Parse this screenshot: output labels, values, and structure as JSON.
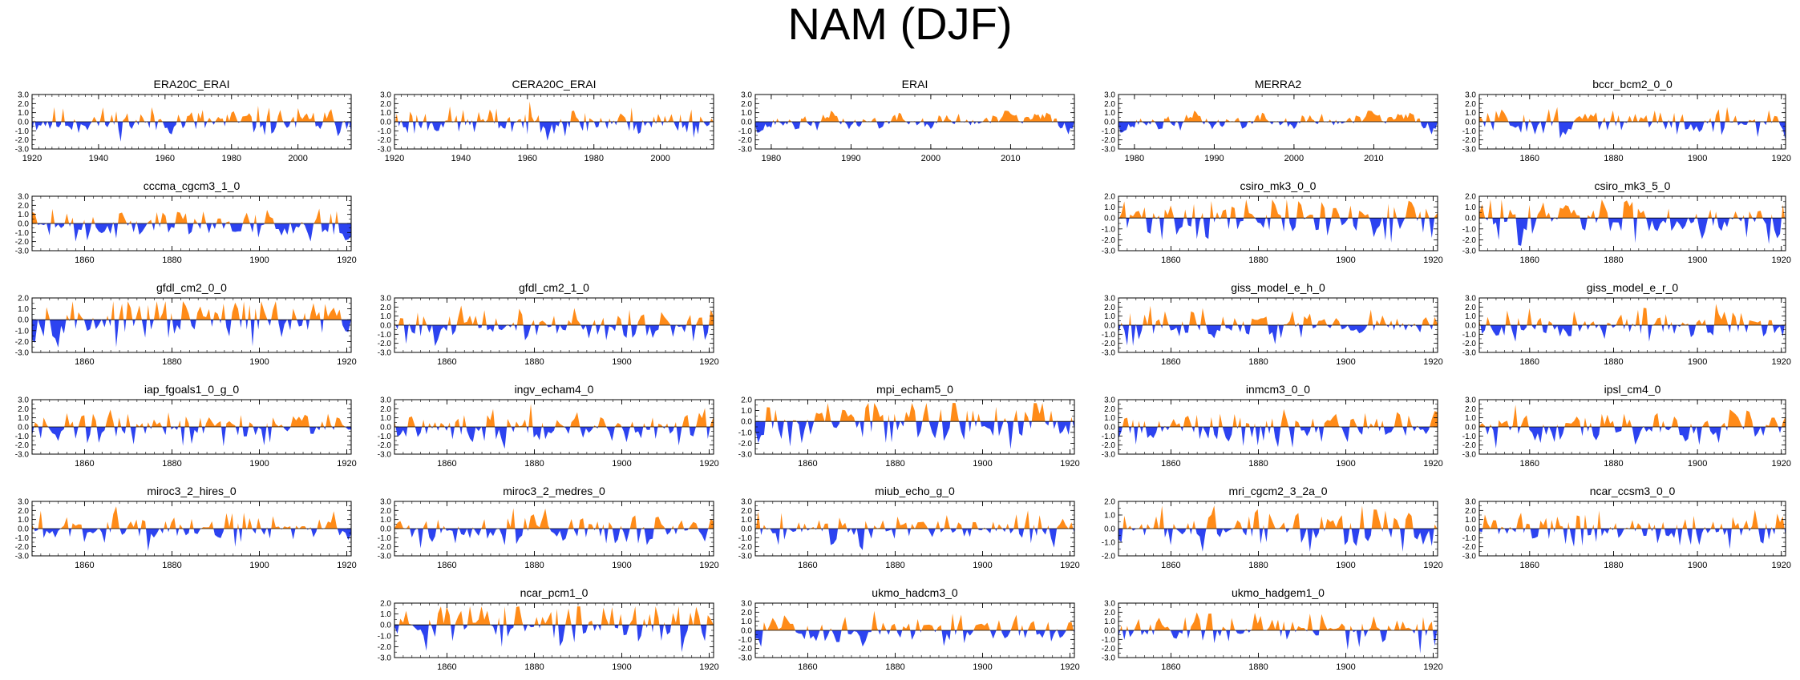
{
  "title": "NAM (DJF)",
  "colors": {
    "positive": "#ff8b18",
    "negative": "#2c43f0",
    "axis": "#000000"
  },
  "chart_data": [
    {
      "type": "area",
      "title": "ERA20C_ERAI",
      "xlim": [
        1920,
        2016
      ],
      "xticks": [
        1920,
        1940,
        1960,
        1980,
        2000
      ],
      "ylim": [
        -3,
        3
      ],
      "yticks": [
        3,
        2,
        1,
        0,
        -1,
        -2,
        -3
      ],
      "ytick_labels": [
        "3.0",
        "2.0",
        "1.0",
        "0.0",
        "-1.0",
        "-2.0",
        "-3.0"
      ],
      "seed": 11,
      "amp": 0.8
    },
    {
      "type": "area",
      "title": "CERA20C_ERAI",
      "xlim": [
        1920,
        2016
      ],
      "xticks": [
        1920,
        1940,
        1960,
        1980,
        2000
      ],
      "ylim": [
        -3,
        3
      ],
      "yticks": [
        3,
        2,
        1,
        0,
        -1,
        -2,
        -3
      ],
      "ytick_labels": [
        "3.0",
        "2.0",
        "1.0",
        "0.0",
        "-1.0",
        "-2.0",
        "-3.0"
      ],
      "seed": 23,
      "amp": 0.8
    },
    {
      "type": "area",
      "title": "ERAI",
      "xlim": [
        1978,
        2018
      ],
      "xticks": [
        1980,
        1990,
        2000,
        2010
      ],
      "ylim": [
        -3,
        3
      ],
      "yticks": [
        3,
        2,
        1,
        0,
        -1,
        -2,
        -3
      ],
      "ytick_labels": [
        "3.0",
        "2.0",
        "1.0",
        "0.0",
        "-1.0",
        "-2.0",
        "-3.0"
      ],
      "seed": 37,
      "amp": 0.9,
      "smooth": true
    },
    {
      "type": "area",
      "title": "MERRA2",
      "xlim": [
        1978,
        2018
      ],
      "xticks": [
        1980,
        1990,
        2000,
        2010
      ],
      "ylim": [
        -3,
        3
      ],
      "yticks": [
        3,
        2,
        1,
        0,
        -1,
        -2,
        -3
      ],
      "ytick_labels": [
        "3.0",
        "2.0",
        "1.0",
        "0.0",
        "-1.0",
        "-2.0",
        "-3.0"
      ],
      "seed": 37,
      "amp": 0.9,
      "smooth": true
    },
    {
      "type": "area",
      "title": "bccr_bcm2_0_0",
      "xlim": [
        1848,
        1921
      ],
      "xticks": [
        1860,
        1880,
        1900,
        1920
      ],
      "ylim": [
        -3,
        3
      ],
      "yticks": [
        3,
        2,
        1,
        0,
        -1,
        -2,
        -3
      ],
      "ytick_labels": [
        "3.0",
        "2.0",
        "1.0",
        "0.0",
        "-1.0",
        "-2.0",
        "-3.0"
      ],
      "seed": 51,
      "amp": 0.8
    },
    {
      "type": "area",
      "title": "cccma_cgcm3_1_0",
      "xlim": [
        1848,
        1921
      ],
      "xticks": [
        1860,
        1880,
        1900,
        1920
      ],
      "ylim": [
        -3,
        3
      ],
      "yticks": [
        3,
        2,
        1,
        0,
        -1,
        -2,
        -3
      ],
      "ytick_labels": [
        "3.0",
        "2.0",
        "1.0",
        "0.0",
        "-1.0",
        "-2.0",
        "-3.0"
      ],
      "seed": 63,
      "amp": 0.9
    },
    {
      "type": "area",
      "title": "csiro_mk3_0_0",
      "xlim": [
        1848,
        1921
      ],
      "xticks": [
        1860,
        1880,
        1900,
        1920
      ],
      "ylim": [
        -3,
        2
      ],
      "yticks": [
        2,
        1,
        0,
        -1,
        -2,
        -3
      ],
      "ytick_labels": [
        "2.0",
        "1.0",
        "0.0",
        "-1.0",
        "-2.0",
        "-3.0"
      ],
      "seed": 71,
      "amp": 1.0
    },
    {
      "type": "area",
      "title": "csiro_mk3_5_0",
      "xlim": [
        1848,
        1921
      ],
      "xticks": [
        1860,
        1880,
        1900,
        1920
      ],
      "ylim": [
        -3,
        2
      ],
      "yticks": [
        2,
        1,
        0,
        -1,
        -2,
        -3
      ],
      "ytick_labels": [
        "2.0",
        "1.0",
        "0.0",
        "-1.0",
        "-2.0",
        "-3.0"
      ],
      "seed": 83,
      "amp": 1.0
    },
    {
      "type": "area",
      "title": "gfdl_cm2_0_0",
      "xlim": [
        1848,
        1921
      ],
      "xticks": [
        1860,
        1880,
        1900,
        1920
      ],
      "ylim": [
        -3,
        2
      ],
      "yticks": [
        2,
        1,
        0,
        -1,
        -2,
        -3
      ],
      "ytick_labels": [
        "2.0",
        "1.0",
        "0.0",
        "-1.0",
        "-2.0",
        "-3.0"
      ],
      "seed": 97,
      "amp": 1.0
    },
    {
      "type": "area",
      "title": "gfdl_cm2_1_0",
      "xlim": [
        1848,
        1921
      ],
      "xticks": [
        1860,
        1880,
        1900,
        1920
      ],
      "ylim": [
        -3,
        3
      ],
      "yticks": [
        3,
        2,
        1,
        0,
        -1,
        -2,
        -3
      ],
      "ytick_labels": [
        "3.0",
        "2.0",
        "1.0",
        "0.0",
        "-1.0",
        "-2.0",
        "-3.0"
      ],
      "seed": 101,
      "amp": 0.9
    },
    {
      "type": "area",
      "title": "giss_model_e_h_0",
      "xlim": [
        1848,
        1921
      ],
      "xticks": [
        1860,
        1880,
        1900,
        1920
      ],
      "ylim": [
        -3,
        3
      ],
      "yticks": [
        3,
        2,
        1,
        0,
        -1,
        -2,
        -3
      ],
      "ytick_labels": [
        "3.0",
        "2.0",
        "1.0",
        "0.0",
        "-1.0",
        "-2.0",
        "-3.0"
      ],
      "seed": 113,
      "amp": 0.9
    },
    {
      "type": "area",
      "title": "giss_model_e_r_0",
      "xlim": [
        1848,
        1921
      ],
      "xticks": [
        1860,
        1880,
        1900,
        1920
      ],
      "ylim": [
        -3,
        3
      ],
      "yticks": [
        3,
        2,
        1,
        0,
        -1,
        -2,
        -3
      ],
      "ytick_labels": [
        "3.0",
        "2.0",
        "1.0",
        "0.0",
        "-1.0",
        "-2.0",
        "-3.0"
      ],
      "seed": 127,
      "amp": 0.9
    },
    {
      "type": "area",
      "title": "iap_fgoals1_0_g_0",
      "xlim": [
        1848,
        1921
      ],
      "xticks": [
        1860,
        1880,
        1900,
        1920
      ],
      "ylim": [
        -3,
        3
      ],
      "yticks": [
        3,
        2,
        1,
        0,
        -1,
        -2,
        -3
      ],
      "ytick_labels": [
        "3.0",
        "2.0",
        "1.0",
        "0.0",
        "-1.0",
        "-2.0",
        "-3.0"
      ],
      "seed": 131,
      "amp": 0.9
    },
    {
      "type": "area",
      "title": "ingv_echam4_0",
      "xlim": [
        1848,
        1921
      ],
      "xticks": [
        1860,
        1880,
        1900,
        1920
      ],
      "ylim": [
        -3,
        3
      ],
      "yticks": [
        3,
        2,
        1,
        0,
        -1,
        -2,
        -3
      ],
      "ytick_labels": [
        "3.0",
        "2.0",
        "1.0",
        "0.0",
        "-1.0",
        "-2.0",
        "-3.0"
      ],
      "seed": 149,
      "amp": 0.9
    },
    {
      "type": "area",
      "title": "mpi_echam5_0",
      "xlim": [
        1848,
        1921
      ],
      "xticks": [
        1860,
        1880,
        1900,
        1920
      ],
      "ylim": [
        -3,
        2
      ],
      "yticks": [
        2,
        1,
        0,
        -1,
        -2,
        -3
      ],
      "ytick_labels": [
        "2.0",
        "1.0",
        "0.0",
        "-1.0",
        "-2.0",
        "-3.0"
      ],
      "seed": 157,
      "amp": 1.0
    },
    {
      "type": "area",
      "title": "inmcm3_0_0",
      "xlim": [
        1848,
        1921
      ],
      "xticks": [
        1860,
        1880,
        1900,
        1920
      ],
      "ylim": [
        -3,
        3
      ],
      "yticks": [
        3,
        2,
        1,
        0,
        -1,
        -2,
        -3
      ],
      "ytick_labels": [
        "3.0",
        "2.0",
        "1.0",
        "0.0",
        "-1.0",
        "-2.0",
        "-3.0"
      ],
      "seed": 163,
      "amp": 0.9
    },
    {
      "type": "area",
      "title": "ipsl_cm4_0",
      "xlim": [
        1848,
        1921
      ],
      "xticks": [
        1860,
        1880,
        1900,
        1920
      ],
      "ylim": [
        -3,
        3
      ],
      "yticks": [
        3,
        2,
        1,
        0,
        -1,
        -2,
        -3
      ],
      "ytick_labels": [
        "3.0",
        "2.0",
        "1.0",
        "0.0",
        "-1.0",
        "-2.0",
        "-3.0"
      ],
      "seed": 173,
      "amp": 0.9
    },
    {
      "type": "area",
      "title": "miroc3_2_hires_0",
      "xlim": [
        1848,
        1921
      ],
      "xticks": [
        1860,
        1880,
        1900,
        1920
      ],
      "ylim": [
        -3,
        3
      ],
      "yticks": [
        3,
        2,
        1,
        0,
        -1,
        -2,
        -3
      ],
      "ytick_labels": [
        "3.0",
        "2.0",
        "1.0",
        "0.0",
        "-1.0",
        "-2.0",
        "-3.0"
      ],
      "seed": 181,
      "amp": 0.9
    },
    {
      "type": "area",
      "title": "miroc3_2_medres_0",
      "xlim": [
        1848,
        1921
      ],
      "xticks": [
        1860,
        1880,
        1900,
        1920
      ],
      "ylim": [
        -3,
        3
      ],
      "yticks": [
        3,
        2,
        1,
        0,
        -1,
        -2,
        -3
      ],
      "ytick_labels": [
        "3.0",
        "2.0",
        "1.0",
        "0.0",
        "-1.0",
        "-2.0",
        "-3.0"
      ],
      "seed": 191,
      "amp": 0.9
    },
    {
      "type": "area",
      "title": "miub_echo_g_0",
      "xlim": [
        1848,
        1921
      ],
      "xticks": [
        1860,
        1880,
        1900,
        1920
      ],
      "ylim": [
        -3,
        3
      ],
      "yticks": [
        3,
        2,
        1,
        0,
        -1,
        -2,
        -3
      ],
      "ytick_labels": [
        "3.0",
        "2.0",
        "1.0",
        "0.0",
        "-1.0",
        "-2.0",
        "-3.0"
      ],
      "seed": 197,
      "amp": 0.9
    },
    {
      "type": "area",
      "title": "mri_cgcm2_3_2a_0",
      "xlim": [
        1848,
        1921
      ],
      "xticks": [
        1860,
        1880,
        1900,
        1920
      ],
      "ylim": [
        -2,
        2
      ],
      "yticks": [
        2,
        1,
        0,
        -1,
        -2
      ],
      "ytick_labels": [
        "2.0",
        "1.0",
        "0.0",
        "-1.0",
        "-2.0"
      ],
      "seed": 211,
      "amp": 0.8
    },
    {
      "type": "area",
      "title": "ncar_ccsm3_0_0",
      "xlim": [
        1848,
        1921
      ],
      "xticks": [
        1860,
        1880,
        1900,
        1920
      ],
      "ylim": [
        -3,
        3
      ],
      "yticks": [
        3,
        2,
        1,
        0,
        -1,
        -2,
        -3
      ],
      "ytick_labels": [
        "3.0",
        "2.0",
        "1.0",
        "0.0",
        "-1.0",
        "-2.0",
        "-3.0"
      ],
      "seed": 223,
      "amp": 0.9
    },
    {
      "type": "area",
      "title": "ncar_pcm1_0",
      "xlim": [
        1848,
        1921
      ],
      "xticks": [
        1860,
        1880,
        1900,
        1920
      ],
      "ylim": [
        -3,
        2
      ],
      "yticks": [
        2,
        1,
        0,
        -1,
        -2,
        -3
      ],
      "ytick_labels": [
        "2.0",
        "1.0",
        "0.0",
        "-1.0",
        "-2.0",
        "-3.0"
      ],
      "seed": 227,
      "amp": 1.0
    },
    {
      "type": "area",
      "title": "ukmo_hadcm3_0",
      "xlim": [
        1848,
        1921
      ],
      "xticks": [
        1860,
        1880,
        1900,
        1920
      ],
      "ylim": [
        -3,
        3
      ],
      "yticks": [
        3,
        2,
        1,
        0,
        -1,
        -2,
        -3
      ],
      "ytick_labels": [
        "3.0",
        "2.0",
        "1.0",
        "0.0",
        "-1.0",
        "-2.0",
        "-3.0"
      ],
      "seed": 229,
      "amp": 0.9
    },
    {
      "type": "area",
      "title": "ukmo_hadgem1_0",
      "xlim": [
        1848,
        1921
      ],
      "xticks": [
        1860,
        1880,
        1900,
        1920
      ],
      "ylim": [
        -3,
        3
      ],
      "yticks": [
        3,
        2,
        1,
        0,
        -1,
        -2,
        -3
      ],
      "ytick_labels": [
        "3.0",
        "2.0",
        "1.0",
        "0.0",
        "-1.0",
        "-2.0",
        "-3.0"
      ],
      "seed": 233,
      "amp": 0.9
    }
  ]
}
